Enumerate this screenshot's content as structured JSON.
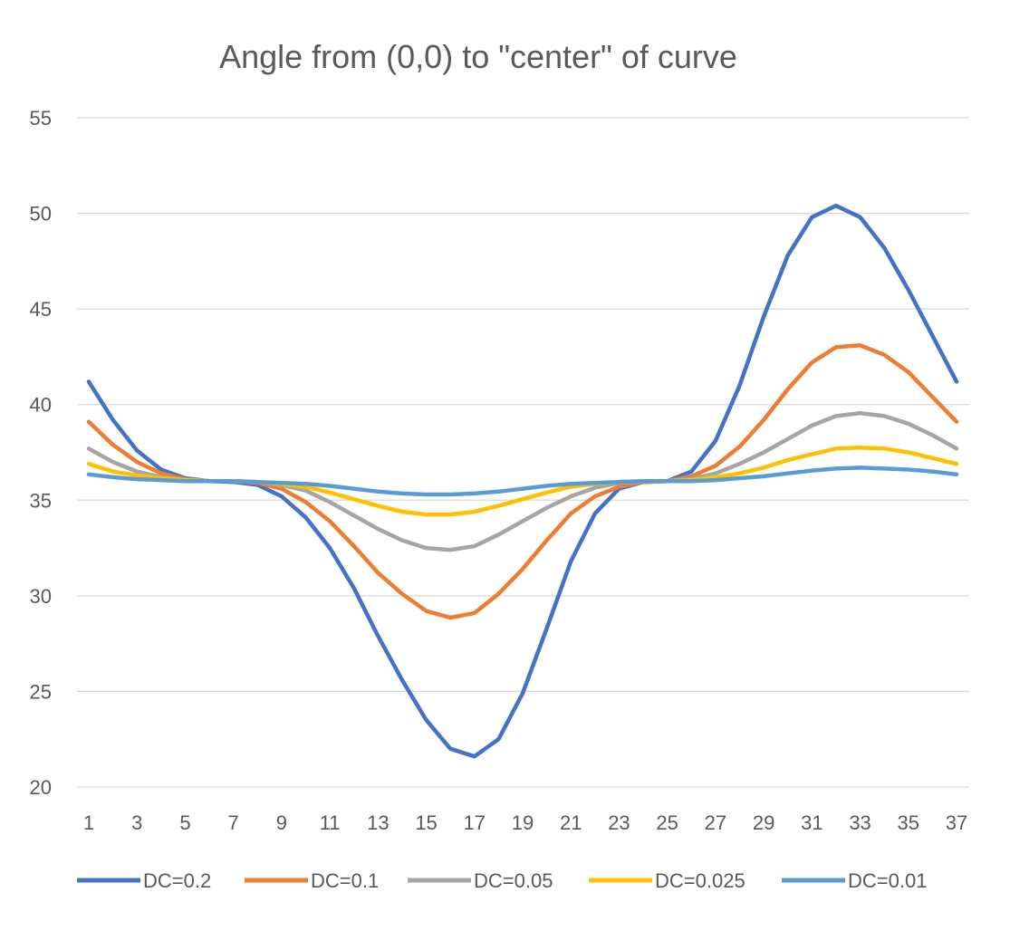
{
  "chart_data": {
    "type": "line",
    "title": "Angle from (0,0) to \"center\" of curve",
    "xlabel": "",
    "ylabel": "",
    "x": [
      1,
      2,
      3,
      4,
      5,
      6,
      7,
      8,
      9,
      10,
      11,
      12,
      13,
      14,
      15,
      16,
      17,
      18,
      19,
      20,
      21,
      22,
      23,
      24,
      25,
      26,
      27,
      28,
      29,
      30,
      31,
      32,
      33,
      34,
      35,
      36,
      37
    ],
    "x_tick_labels": [
      "1",
      "3",
      "5",
      "7",
      "9",
      "11",
      "13",
      "15",
      "17",
      "19",
      "21",
      "23",
      "25",
      "27",
      "29",
      "31",
      "33",
      "35",
      "37"
    ],
    "ylim": [
      20,
      55
    ],
    "y_ticks": [
      20,
      25,
      30,
      35,
      40,
      45,
      50,
      55
    ],
    "grid": "horizontal",
    "legend_position": "bottom",
    "series": [
      {
        "name": "DC=0.2",
        "color": "#4472C4",
        "values": [
          41.2,
          39.2,
          37.6,
          36.6,
          36.15,
          36.0,
          35.95,
          35.8,
          35.2,
          34.1,
          32.5,
          30.4,
          27.9,
          25.6,
          23.5,
          22.0,
          21.6,
          22.5,
          24.9,
          28.3,
          31.8,
          34.3,
          35.6,
          35.95,
          36.0,
          36.5,
          38.1,
          41.0,
          44.6,
          47.8,
          49.8,
          50.4,
          49.8,
          48.2,
          46.0,
          43.6,
          41.2
        ]
      },
      {
        "name": "DC=0.1",
        "color": "#ED7D31",
        "values": [
          39.1,
          37.9,
          37.0,
          36.4,
          36.1,
          36.0,
          36.0,
          35.9,
          35.6,
          34.9,
          33.9,
          32.6,
          31.2,
          30.1,
          29.2,
          28.85,
          29.1,
          30.1,
          31.4,
          32.9,
          34.3,
          35.2,
          35.7,
          35.95,
          36.0,
          36.25,
          36.8,
          37.8,
          39.2,
          40.8,
          42.2,
          43.0,
          43.1,
          42.6,
          41.7,
          40.4,
          39.1
        ]
      },
      {
        "name": "DC=0.05",
        "color": "#A5A5A5",
        "values": [
          37.7,
          37.0,
          36.5,
          36.2,
          36.05,
          36.0,
          36.0,
          35.95,
          35.8,
          35.5,
          34.9,
          34.2,
          33.5,
          32.9,
          32.5,
          32.4,
          32.6,
          33.2,
          33.9,
          34.6,
          35.2,
          35.65,
          35.9,
          36.0,
          36.0,
          36.1,
          36.4,
          36.9,
          37.5,
          38.2,
          38.9,
          39.4,
          39.55,
          39.4,
          39.0,
          38.4,
          37.7
        ]
      },
      {
        "name": "DC=0.025",
        "color": "#FFC000",
        "values": [
          36.9,
          36.5,
          36.3,
          36.15,
          36.05,
          36.0,
          36.0,
          35.95,
          35.85,
          35.7,
          35.4,
          35.05,
          34.7,
          34.4,
          34.25,
          34.25,
          34.4,
          34.7,
          35.05,
          35.4,
          35.7,
          35.85,
          35.95,
          36.0,
          36.0,
          36.05,
          36.2,
          36.4,
          36.7,
          37.1,
          37.4,
          37.7,
          37.75,
          37.7,
          37.5,
          37.2,
          36.9
        ]
      },
      {
        "name": "DC=0.01",
        "color": "#5B9BD5",
        "values": [
          36.35,
          36.2,
          36.1,
          36.05,
          36.0,
          36.0,
          36.0,
          35.95,
          35.9,
          35.85,
          35.75,
          35.6,
          35.45,
          35.35,
          35.3,
          35.3,
          35.35,
          35.45,
          35.6,
          35.75,
          35.85,
          35.9,
          35.95,
          36.0,
          36.0,
          36.0,
          36.05,
          36.15,
          36.25,
          36.4,
          36.55,
          36.65,
          36.7,
          36.65,
          36.6,
          36.5,
          36.35
        ]
      }
    ]
  }
}
